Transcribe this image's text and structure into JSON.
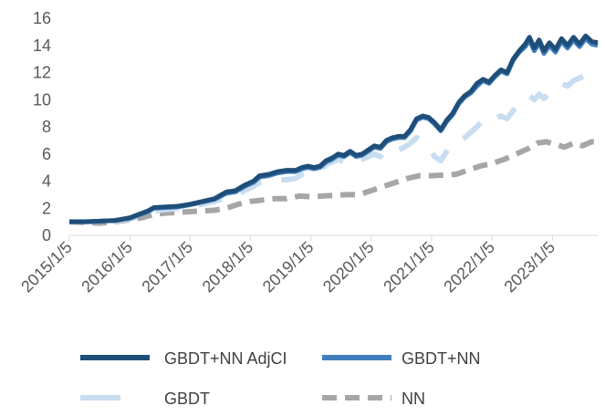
{
  "chart_data": {
    "type": "line",
    "title": "",
    "xlabel": "",
    "ylabel": "",
    "ylim": [
      0,
      16
    ],
    "yticks": [
      "0",
      "2",
      "4",
      "6",
      "8",
      "10",
      "12",
      "14",
      "16"
    ],
    "xticks": [
      "2015/1/5",
      "2016/1/5",
      "2017/1/5",
      "2018/1/5",
      "2019/1/5",
      "2020/1/5",
      "2021/1/5",
      "2022/1/5",
      "2023/1/5"
    ],
    "xlim": [
      2015.0,
      2023.75
    ],
    "grid": false,
    "legend_position": "bottom",
    "series": [
      {
        "name": "GBDT+NN AdjCI",
        "color": "#1f4e79",
        "style": "solid",
        "points": [
          [
            2015.0,
            1.0
          ],
          [
            2015.25,
            1.0
          ],
          [
            2015.5,
            1.05
          ],
          [
            2015.75,
            1.1
          ],
          [
            2016.0,
            1.3
          ],
          [
            2016.15,
            1.55
          ],
          [
            2016.3,
            1.8
          ],
          [
            2016.4,
            2.05
          ],
          [
            2016.6,
            2.1
          ],
          [
            2016.8,
            2.15
          ],
          [
            2017.0,
            2.3
          ],
          [
            2017.2,
            2.5
          ],
          [
            2017.4,
            2.7
          ],
          [
            2017.6,
            3.2
          ],
          [
            2017.75,
            3.3
          ],
          [
            2017.9,
            3.7
          ],
          [
            2018.05,
            4.0
          ],
          [
            2018.15,
            4.4
          ],
          [
            2018.3,
            4.5
          ],
          [
            2018.45,
            4.7
          ],
          [
            2018.6,
            4.8
          ],
          [
            2018.75,
            4.8
          ],
          [
            2018.85,
            5.0
          ],
          [
            2018.95,
            5.1
          ],
          [
            2019.05,
            5.0
          ],
          [
            2019.15,
            5.1
          ],
          [
            2019.25,
            5.5
          ],
          [
            2019.35,
            5.7
          ],
          [
            2019.45,
            6.0
          ],
          [
            2019.55,
            5.9
          ],
          [
            2019.65,
            6.2
          ],
          [
            2019.75,
            5.9
          ],
          [
            2019.85,
            6.0
          ],
          [
            2019.95,
            6.3
          ],
          [
            2020.05,
            6.6
          ],
          [
            2020.15,
            6.5
          ],
          [
            2020.25,
            7.0
          ],
          [
            2020.35,
            7.2
          ],
          [
            2020.45,
            7.3
          ],
          [
            2020.55,
            7.3
          ],
          [
            2020.65,
            7.8
          ],
          [
            2020.75,
            8.6
          ],
          [
            2020.85,
            8.8
          ],
          [
            2020.95,
            8.7
          ],
          [
            2021.05,
            8.3
          ],
          [
            2021.15,
            7.8
          ],
          [
            2021.25,
            8.5
          ],
          [
            2021.35,
            9.0
          ],
          [
            2021.45,
            9.8
          ],
          [
            2021.55,
            10.3
          ],
          [
            2021.65,
            10.6
          ],
          [
            2021.75,
            11.2
          ],
          [
            2021.85,
            11.5
          ],
          [
            2021.95,
            11.3
          ],
          [
            2022.05,
            11.8
          ],
          [
            2022.15,
            12.2
          ],
          [
            2022.25,
            12.0
          ],
          [
            2022.35,
            13.0
          ],
          [
            2022.45,
            13.6
          ],
          [
            2022.55,
            14.1
          ],
          [
            2022.62,
            14.6
          ],
          [
            2022.7,
            13.8
          ],
          [
            2022.78,
            14.4
          ],
          [
            2022.86,
            13.6
          ],
          [
            2022.95,
            14.2
          ],
          [
            2023.05,
            13.7
          ],
          [
            2023.15,
            14.5
          ],
          [
            2023.25,
            14.0
          ],
          [
            2023.35,
            14.6
          ],
          [
            2023.45,
            14.1
          ],
          [
            2023.55,
            14.7
          ],
          [
            2023.65,
            14.3
          ],
          [
            2023.75,
            14.2
          ]
        ]
      },
      {
        "name": "GBDT+NN",
        "color": "#3f7fbf",
        "style": "solid",
        "points": [
          [
            2015.0,
            1.0
          ],
          [
            2015.25,
            1.0
          ],
          [
            2015.5,
            1.05
          ],
          [
            2015.75,
            1.08
          ],
          [
            2016.0,
            1.25
          ],
          [
            2016.15,
            1.5
          ],
          [
            2016.3,
            1.75
          ],
          [
            2016.4,
            2.0
          ],
          [
            2016.6,
            2.05
          ],
          [
            2016.8,
            2.1
          ],
          [
            2017.0,
            2.25
          ],
          [
            2017.2,
            2.45
          ],
          [
            2017.4,
            2.65
          ],
          [
            2017.6,
            3.1
          ],
          [
            2017.75,
            3.2
          ],
          [
            2017.9,
            3.6
          ],
          [
            2018.05,
            3.9
          ],
          [
            2018.15,
            4.3
          ],
          [
            2018.3,
            4.4
          ],
          [
            2018.45,
            4.6
          ],
          [
            2018.6,
            4.7
          ],
          [
            2018.75,
            4.7
          ],
          [
            2018.85,
            4.9
          ],
          [
            2018.95,
            5.0
          ],
          [
            2019.05,
            4.9
          ],
          [
            2019.15,
            5.0
          ],
          [
            2019.25,
            5.4
          ],
          [
            2019.35,
            5.6
          ],
          [
            2019.45,
            5.9
          ],
          [
            2019.55,
            5.8
          ],
          [
            2019.65,
            6.1
          ],
          [
            2019.75,
            5.8
          ],
          [
            2019.85,
            5.9
          ],
          [
            2019.95,
            6.2
          ],
          [
            2020.05,
            6.5
          ],
          [
            2020.15,
            6.4
          ],
          [
            2020.25,
            6.9
          ],
          [
            2020.35,
            7.1
          ],
          [
            2020.45,
            7.2
          ],
          [
            2020.55,
            7.2
          ],
          [
            2020.65,
            7.7
          ],
          [
            2020.75,
            8.5
          ],
          [
            2020.85,
            8.7
          ],
          [
            2020.95,
            8.6
          ],
          [
            2021.05,
            8.2
          ],
          [
            2021.15,
            7.7
          ],
          [
            2021.25,
            8.4
          ],
          [
            2021.35,
            8.9
          ],
          [
            2021.45,
            9.7
          ],
          [
            2021.55,
            10.2
          ],
          [
            2021.65,
            10.5
          ],
          [
            2021.75,
            11.0
          ],
          [
            2021.85,
            11.4
          ],
          [
            2021.95,
            11.2
          ],
          [
            2022.05,
            11.7
          ],
          [
            2022.15,
            12.1
          ],
          [
            2022.25,
            11.9
          ],
          [
            2022.35,
            12.9
          ],
          [
            2022.45,
            13.5
          ],
          [
            2022.55,
            13.9
          ],
          [
            2022.62,
            14.4
          ],
          [
            2022.7,
            13.6
          ],
          [
            2022.78,
            14.2
          ],
          [
            2022.86,
            13.4
          ],
          [
            2022.95,
            14.0
          ],
          [
            2023.05,
            13.5
          ],
          [
            2023.15,
            14.3
          ],
          [
            2023.25,
            13.8
          ],
          [
            2023.35,
            14.4
          ],
          [
            2023.45,
            13.9
          ],
          [
            2023.55,
            14.5
          ],
          [
            2023.65,
            14.1
          ],
          [
            2023.75,
            14.0
          ]
        ]
      },
      {
        "name": "GBDT",
        "color": "#c9ddf0",
        "style": "dashed",
        "points": [
          [
            2015.0,
            1.0
          ],
          [
            2015.25,
            1.0
          ],
          [
            2015.5,
            1.0
          ],
          [
            2015.75,
            1.05
          ],
          [
            2016.0,
            1.2
          ],
          [
            2016.15,
            1.4
          ],
          [
            2016.3,
            1.6
          ],
          [
            2016.4,
            1.8
          ],
          [
            2016.6,
            1.9
          ],
          [
            2016.8,
            2.0
          ],
          [
            2017.0,
            2.1
          ],
          [
            2017.2,
            2.3
          ],
          [
            2017.4,
            2.5
          ],
          [
            2017.6,
            2.8
          ],
          [
            2017.75,
            2.9
          ],
          [
            2017.9,
            3.3
          ],
          [
            2018.05,
            3.6
          ],
          [
            2018.15,
            3.9
          ],
          [
            2018.3,
            4.0
          ],
          [
            2018.45,
            4.1
          ],
          [
            2018.6,
            4.1
          ],
          [
            2018.75,
            4.2
          ],
          [
            2018.85,
            4.5
          ],
          [
            2018.95,
            4.6
          ],
          [
            2019.05,
            4.6
          ],
          [
            2019.15,
            4.8
          ],
          [
            2019.25,
            5.2
          ],
          [
            2019.35,
            5.4
          ],
          [
            2019.45,
            5.6
          ],
          [
            2019.55,
            5.4
          ],
          [
            2019.65,
            5.7
          ],
          [
            2019.75,
            5.5
          ],
          [
            2019.85,
            5.6
          ],
          [
            2019.95,
            5.8
          ],
          [
            2020.05,
            6.0
          ],
          [
            2020.15,
            5.8
          ],
          [
            2020.25,
            6.2
          ],
          [
            2020.35,
            6.0
          ],
          [
            2020.45,
            6.3
          ],
          [
            2020.55,
            6.5
          ],
          [
            2020.65,
            6.8
          ],
          [
            2020.75,
            7.2
          ],
          [
            2020.85,
            6.9
          ],
          [
            2020.95,
            6.4
          ],
          [
            2021.05,
            5.8
          ],
          [
            2021.15,
            5.5
          ],
          [
            2021.25,
            6.2
          ],
          [
            2021.35,
            6.8
          ],
          [
            2021.45,
            7.0
          ],
          [
            2021.55,
            7.2
          ],
          [
            2021.65,
            7.6
          ],
          [
            2021.75,
            8.0
          ],
          [
            2021.85,
            8.5
          ],
          [
            2021.95,
            8.3
          ],
          [
            2022.05,
            8.6
          ],
          [
            2022.15,
            8.8
          ],
          [
            2022.25,
            8.6
          ],
          [
            2022.35,
            9.2
          ],
          [
            2022.45,
            9.7
          ],
          [
            2022.55,
            10.0
          ],
          [
            2022.62,
            10.3
          ],
          [
            2022.7,
            10.0
          ],
          [
            2022.78,
            10.4
          ],
          [
            2022.86,
            10.1
          ],
          [
            2022.95,
            10.5
          ],
          [
            2023.05,
            10.8
          ],
          [
            2023.15,
            11.2
          ],
          [
            2023.25,
            11.0
          ],
          [
            2023.35,
            11.4
          ],
          [
            2023.45,
            11.6
          ],
          [
            2023.55,
            11.8
          ],
          [
            2023.65,
            11.5
          ],
          [
            2023.75,
            11.6
          ]
        ]
      },
      {
        "name": "NN",
        "color": "#a6a6a6",
        "style": "dashed",
        "points": [
          [
            2015.0,
            1.0
          ],
          [
            2015.25,
            0.95
          ],
          [
            2015.5,
            0.9
          ],
          [
            2015.75,
            1.0
          ],
          [
            2016.0,
            1.15
          ],
          [
            2016.2,
            1.3
          ],
          [
            2016.4,
            1.55
          ],
          [
            2016.6,
            1.65
          ],
          [
            2016.8,
            1.7
          ],
          [
            2017.0,
            1.75
          ],
          [
            2017.2,
            1.8
          ],
          [
            2017.4,
            1.85
          ],
          [
            2017.6,
            2.0
          ],
          [
            2017.8,
            2.3
          ],
          [
            2018.0,
            2.5
          ],
          [
            2018.2,
            2.6
          ],
          [
            2018.4,
            2.7
          ],
          [
            2018.6,
            2.7
          ],
          [
            2018.8,
            2.9
          ],
          [
            2019.0,
            2.85
          ],
          [
            2019.2,
            2.9
          ],
          [
            2019.4,
            2.95
          ],
          [
            2019.6,
            3.0
          ],
          [
            2019.8,
            3.0
          ],
          [
            2020.0,
            3.3
          ],
          [
            2020.2,
            3.6
          ],
          [
            2020.4,
            3.9
          ],
          [
            2020.6,
            4.2
          ],
          [
            2020.8,
            4.4
          ],
          [
            2021.0,
            4.4
          ],
          [
            2021.2,
            4.45
          ],
          [
            2021.4,
            4.5
          ],
          [
            2021.6,
            4.8
          ],
          [
            2021.8,
            5.1
          ],
          [
            2022.0,
            5.3
          ],
          [
            2022.2,
            5.6
          ],
          [
            2022.4,
            6.0
          ],
          [
            2022.6,
            6.4
          ],
          [
            2022.75,
            6.8
          ],
          [
            2022.9,
            6.9
          ],
          [
            2023.05,
            6.7
          ],
          [
            2023.2,
            6.5
          ],
          [
            2023.35,
            6.8
          ],
          [
            2023.5,
            6.6
          ],
          [
            2023.65,
            6.9
          ],
          [
            2023.75,
            6.9
          ]
        ]
      }
    ]
  }
}
